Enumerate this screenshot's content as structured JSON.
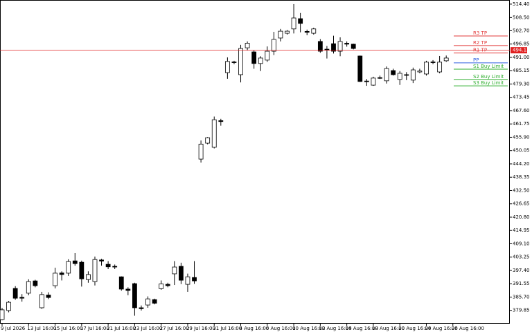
{
  "chart_data": {
    "type": "candlestick",
    "categories": [
      "9 Jul 2026",
      null,
      null,
      null,
      "13 Jul 16:00",
      null,
      null,
      null,
      "15 Jul 16:00",
      null,
      null,
      null,
      "17 Jul 16:00",
      null,
      null,
      null,
      "21 Jul 16:00",
      null,
      null,
      null,
      "23 Jul 16:00",
      null,
      null,
      null,
      "27 Jul 16:00",
      null,
      null,
      null,
      "29 Jul 16:00",
      null,
      null,
      null,
      "31 Jul 16:00",
      null,
      null,
      null,
      "4 Aug 16:00",
      null,
      null,
      null,
      "6 Aug 16:00",
      null,
      null,
      null,
      "10 Aug 16:00",
      null,
      null,
      null,
      "12 Aug 16:00",
      null,
      null,
      null,
      "14 Aug 16:00",
      null,
      null,
      null,
      "18 Aug 16:00",
      null,
      null,
      null,
      "20 Aug 16:00",
      null,
      null,
      null,
      "24 Aug 16:00",
      null,
      null,
      null,
      "26 Aug 16:00"
    ],
    "open": [
      375.8,
      379.8,
      389.5,
      385.6,
      387.4,
      392.8,
      381.0,
      386.6,
      390.7,
      396.3,
      396.2,
      401.6,
      401.0,
      393.4,
      392.5,
      402.0,
      400.1,
      399.2,
      394.6,
      389.2,
      391.6,
      381.0,
      382.2,
      384.6,
      389.4,
      391.3,
      395.9,
      399.2,
      391.3,
      394.3,
      446.3,
      453.3,
      451.5,
      463.2,
      484.3,
      489.0,
      483.4,
      495.2,
      493.4,
      488.3,
      489.8,
      493.7,
      499.5,
      501.6,
      503.5,
      508.0,
      502.4,
      501.6,
      498.0,
      494.6,
      497.0,
      493.7,
      497.2,
      496.8,
      491.6,
      480.6,
      478.8,
      482.1,
      480.7,
      485.2,
      481.3,
      483.4,
      481.0,
      484.6,
      483.7,
      489.0,
      484.6,
      489.5,
      null
    ],
    "high": [
      381,
      384,
      390.5,
      387,
      393.5,
      393.3,
      388,
      387.8,
      398.6,
      397,
      402.3,
      405,
      401.7,
      397,
      403.5,
      402.5,
      401.5,
      400,
      394.8,
      390,
      392,
      382,
      386,
      385,
      393,
      392,
      401.5,
      400.8,
      396,
      401.5,
      454.5,
      456,
      465,
      464,
      491,
      489.5,
      496.5,
      498,
      494,
      491.5,
      495.8,
      502.2,
      503.5,
      503,
      514.4,
      510.5,
      503.2,
      504,
      499,
      496,
      500.5,
      499.8,
      498,
      497,
      491.8,
      481.5,
      482.5,
      483,
      487,
      486,
      485,
      484.5,
      486.5,
      486,
      489.5,
      489.8,
      491.6,
      491.8,
      null
    ],
    "low": [
      375.5,
      379,
      384.5,
      383.7,
      386.5,
      390,
      380.5,
      384.8,
      389.5,
      393,
      395,
      399.5,
      390.3,
      392,
      390.8,
      399.5,
      398,
      398,
      388.5,
      386.5,
      377.5,
      379.8,
      381,
      382.5,
      388.9,
      390,
      391,
      391.4,
      388,
      391.5,
      444.8,
      452.8,
      451,
      461,
      481.6,
      488,
      480,
      494,
      486,
      485,
      489,
      492,
      498,
      501,
      501.5,
      502,
      500.7,
      501,
      493,
      490.5,
      492.7,
      491.5,
      495.7,
      494.5,
      480.2,
      478.5,
      478.5,
      481.5,
      479.5,
      483,
      478.9,
      481,
      479.7,
      484,
      483,
      488,
      484,
      489,
      null
    ],
    "close": [
      380.1,
      383.4,
      385.2,
      385.2,
      392.5,
      390.7,
      386.8,
      385.5,
      396.2,
      395.6,
      401.3,
      400.4,
      393.7,
      395.6,
      402.2,
      401.5,
      399.0,
      398.9,
      389.2,
      388.6,
      381.0,
      380.6,
      384.9,
      383.0,
      391.5,
      390.7,
      398.9,
      393.1,
      394.6,
      392.8,
      452.9,
      455.7,
      463.6,
      462.8,
      489.2,
      488.8,
      494.9,
      497.2,
      488.3,
      490.7,
      493.7,
      498.9,
      502.5,
      502.5,
      508.3,
      505.9,
      502.0,
      503.5,
      493.7,
      494.2,
      493.7,
      498.0,
      496.8,
      494.9,
      480.4,
      480.3,
      481.9,
      482.0,
      486.1,
      483.4,
      484.0,
      483.3,
      485.5,
      485.0,
      488.9,
      488.7,
      488.9,
      490.7,
      null
    ],
    "up_color": "#ffffff",
    "down_color": "#000000",
    "ylim": [
      374.0,
      516.2
    ],
    "yticks": [
      {
        "value": 514.4,
        "label": "514.40"
      },
      {
        "value": 508.5,
        "label": "508.50"
      },
      {
        "value": 502.7,
        "label": "502.70"
      },
      {
        "value": 496.85,
        "label": "496.85"
      },
      {
        "value": 491.0,
        "label": "491.00"
      },
      {
        "value": 485.15,
        "label": "485.15"
      },
      {
        "value": 479.3,
        "label": "479.30"
      },
      {
        "value": 473.45,
        "label": "473.45"
      },
      {
        "value": 467.6,
        "label": "467.60"
      },
      {
        "value": 461.75,
        "label": "461.75"
      },
      {
        "value": 455.9,
        "label": "455.90"
      },
      {
        "value": 450.05,
        "label": "450.05"
      },
      {
        "value": 444.2,
        "label": "444.20"
      },
      {
        "value": 438.35,
        "label": "438.35"
      },
      {
        "value": 432.5,
        "label": "432.50"
      },
      {
        "value": 426.65,
        "label": "426.65"
      },
      {
        "value": 420.8,
        "label": "420.80"
      },
      {
        "value": 414.95,
        "label": "414.95"
      },
      {
        "value": 409.1,
        "label": "409.10"
      },
      {
        "value": 403.25,
        "label": "403.25"
      },
      {
        "value": 397.4,
        "label": "397.40"
      },
      {
        "value": 391.55,
        "label": "391.55"
      },
      {
        "value": 385.7,
        "label": "385.70"
      },
      {
        "value": 379.85,
        "label": "379.85"
      }
    ],
    "current_price": 494.13,
    "current_price_color": "#e02020",
    "levels": [
      {
        "name": "R3 TP",
        "value": 500.4,
        "color": "#e23a3a"
      },
      {
        "name": "R2 TP",
        "value": 496.2,
        "color": "#e23a3a"
      },
      {
        "name": "R1 TP",
        "value": 492.9,
        "color": "#e23a3a"
      },
      {
        "name": "PP",
        "value": 488.6,
        "color": "#3060e0"
      },
      {
        "name": "S1 Buy Limit",
        "value": 485.8,
        "color": "#2eae2e"
      },
      {
        "name": "S2 Buy Limit",
        "value": 481.3,
        "color": "#2eae2e"
      },
      {
        "name": "S3 Buy Limit",
        "value": 478.5,
        "color": "#2eae2e"
      }
    ]
  }
}
